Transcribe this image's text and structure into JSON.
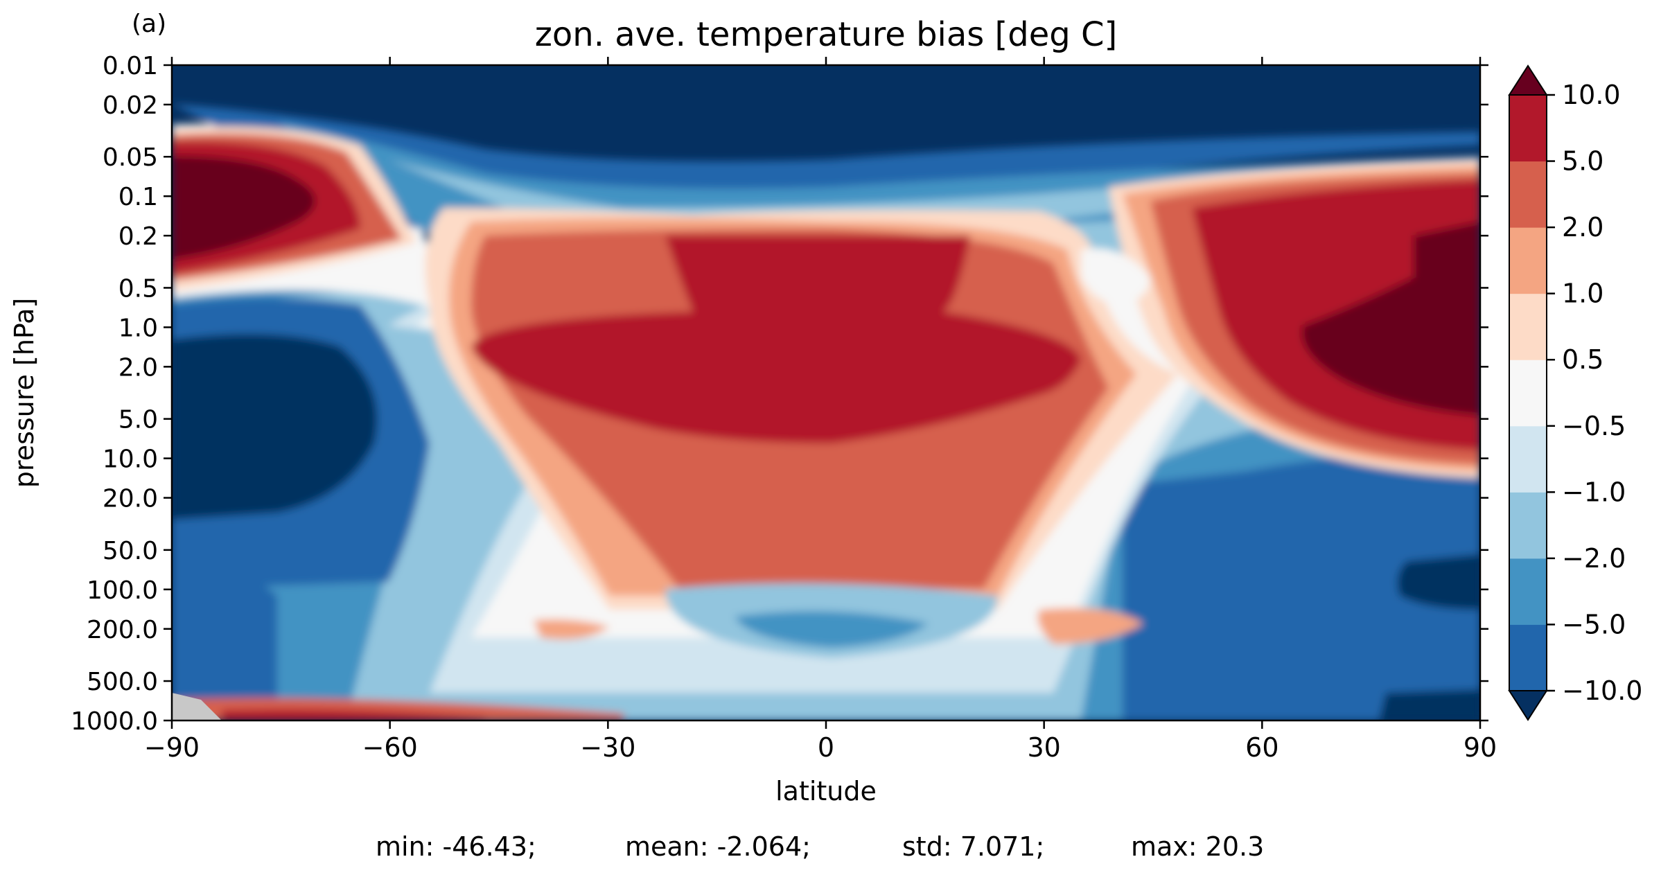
{
  "panel_label": "(a)",
  "chart_data": {
    "type": "heatmap",
    "title": "zon. ave. temperature bias [deg C]",
    "xlabel": "latitude",
    "ylabel": "pressure [hPa]",
    "xlim": [
      -90,
      90
    ],
    "ylim": [
      1000,
      0.01
    ],
    "y_scale": "log",
    "x_ticks": [
      "−90",
      "−60",
      "−30",
      "0",
      "30",
      "60",
      "90"
    ],
    "x_tick_values": [
      -90,
      -60,
      -30,
      0,
      30,
      60,
      90
    ],
    "y_ticks": [
      "0.01",
      "0.02",
      "0.05",
      "0.1",
      "0.2",
      "0.5",
      "1.0",
      "2.0",
      "5.0",
      "10.0",
      "20.0",
      "50.0",
      "100.0",
      "200.0",
      "500.0",
      "1000.0"
    ],
    "y_tick_values": [
      0.01,
      0.02,
      0.05,
      0.1,
      0.2,
      0.5,
      1,
      2,
      5,
      10,
      20,
      50,
      100,
      200,
      500,
      1000
    ],
    "colorbar": {
      "levels": [
        -10,
        -5,
        -2,
        -1,
        -0.5,
        0.5,
        1,
        2,
        5,
        10
      ],
      "tick_labels": [
        "10.0",
        "5.0",
        "2.0",
        "1.0",
        "0.5",
        "−0.5",
        "−1.0",
        "−2.0",
        "−5.0",
        "−10.0"
      ],
      "extend": "both",
      "colors": [
        "#053061",
        "#2166ac",
        "#4393c3",
        "#92c5de",
        "#d1e5f0",
        "#f7f7f7",
        "#fddbc7",
        "#f4a582",
        "#d6604d",
        "#b2182b",
        "#67001f"
      ]
    },
    "missing_color": "#c8c8c8",
    "stats": {
      "min": "min: -46.43;",
      "mean": "mean: -2.064;",
      "std": "std: 7.071;",
      "max": "max: 20.3"
    }
  }
}
